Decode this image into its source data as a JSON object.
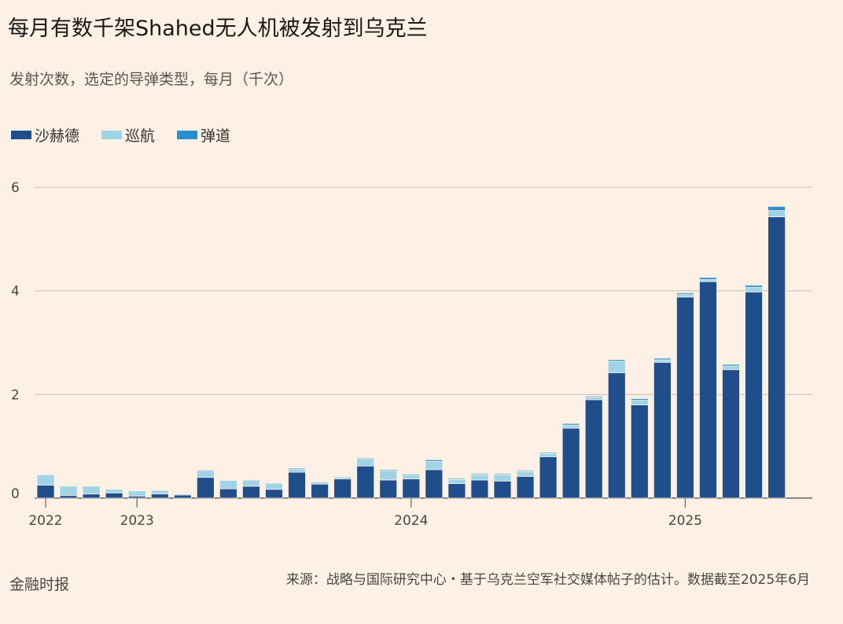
{
  "title": "每月有数千架Shahed无人机被发射到乌克兰",
  "subtitle": "发射次数，选定的导弹类型，每月（千次）",
  "legend": [
    {
      "label": "沙赫德",
      "color": "#1f4e8a"
    },
    {
      "label": "巡航",
      "color": "#9fd3e6"
    },
    {
      "label": "弹道",
      "color": "#2b8fcb"
    }
  ],
  "source": "来源：战略与国际研究中心・基于乌克兰空军社交媒体帖子的估计。数据截至2025年6月",
  "brand": "金融时报",
  "chart_data": {
    "type": "bar",
    "stacked": true,
    "categories": [
      "2022-09",
      "2022-10",
      "2022-11",
      "2022-12",
      "2023-01",
      "2023-02",
      "2023-03",
      "2023-04",
      "2023-05",
      "2023-06",
      "2023-07",
      "2023-08",
      "2023-09",
      "2023-10",
      "2023-11",
      "2023-12",
      "2024-01",
      "2024-02",
      "2024-03",
      "2024-04",
      "2024-05",
      "2024-06",
      "2024-07",
      "2024-08",
      "2024-09",
      "2024-10",
      "2024-11",
      "2024-12",
      "2025-01",
      "2025-02",
      "2025-03",
      "2025-04",
      "2025-05",
      "2025-06"
    ],
    "series": [
      {
        "name": "沙赫德",
        "color": "#1f4e8a",
        "values": [
          0.25,
          0.05,
          0.08,
          0.1,
          0.04,
          0.08,
          0.06,
          0.4,
          0.18,
          0.23,
          0.17,
          0.5,
          0.27,
          0.37,
          0.62,
          0.35,
          0.37,
          0.55,
          0.28,
          0.35,
          0.33,
          0.42,
          0.8,
          1.35,
          1.9,
          2.42,
          1.8,
          2.62,
          3.88,
          4.18,
          2.48,
          3.98,
          5.43,
          0
        ]
      },
      {
        "name": "巡航",
        "color": "#9fd3e6",
        "values": [
          0.2,
          0.18,
          0.15,
          0.07,
          0.1,
          0.07,
          0.02,
          0.12,
          0.16,
          0.12,
          0.12,
          0.06,
          0.04,
          0.04,
          0.13,
          0.18,
          0.07,
          0.16,
          0.08,
          0.1,
          0.12,
          0.09,
          0.06,
          0.06,
          0.05,
          0.22,
          0.09,
          0.05,
          0.05,
          0.04,
          0.07,
          0.09,
          0.12,
          0
        ]
      },
      {
        "name": "弹道",
        "color": "#2b8fcb",
        "values": [
          0,
          0,
          0,
          0,
          0,
          0,
          0,
          0.02,
          0.01,
          0.01,
          0.01,
          0.02,
          0.01,
          0.01,
          0.02,
          0.02,
          0.02,
          0.03,
          0.02,
          0.02,
          0.02,
          0.02,
          0.02,
          0.03,
          0.02,
          0.03,
          0.03,
          0.03,
          0.03,
          0.04,
          0.03,
          0.04,
          0.08,
          0
        ]
      }
    ],
    "y_ticks": [
      0,
      2,
      4,
      6
    ],
    "ylim": [
      0,
      6
    ],
    "x_tick_labels": [
      {
        "label": "2022",
        "at": "2022-09"
      },
      {
        "label": "2023",
        "at": "2023-01"
      },
      {
        "label": "2024",
        "at": "2024-01"
      },
      {
        "label": "2025",
        "at": "2025-01"
      }
    ],
    "grid": true
  }
}
